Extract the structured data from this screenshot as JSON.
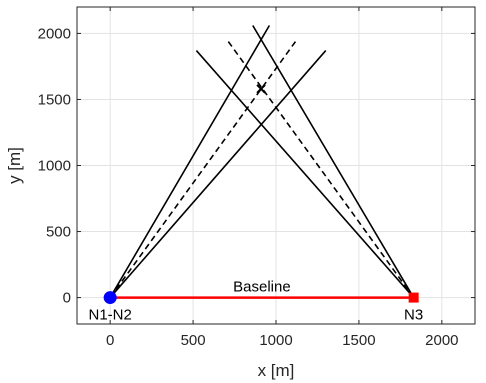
{
  "chart_data": {
    "type": "line",
    "title": "",
    "xlabel": "x [m]",
    "ylabel": "y [m]",
    "xlim": [
      -200,
      2200
    ],
    "ylim": [
      -200,
      2200
    ],
    "xticks": [
      0,
      500,
      1000,
      1500,
      2000
    ],
    "yticks": [
      0,
      500,
      1000,
      1500,
      2000
    ],
    "grid": true,
    "series": [
      {
        "style": "solid",
        "color": "#000000",
        "x": [
          0,
          1300
        ],
        "y": [
          0,
          1870
        ]
      },
      {
        "style": "solid",
        "color": "#000000",
        "x": [
          0,
          960
        ],
        "y": [
          0,
          2060
        ]
      },
      {
        "style": "dashed",
        "color": "#000000",
        "x": [
          0,
          1130
        ],
        "y": [
          0,
          1960
        ]
      },
      {
        "style": "solid",
        "color": "#000000",
        "x": [
          1830,
          520
        ],
        "y": [
          0,
          1870
        ]
      },
      {
        "style": "solid",
        "color": "#000000",
        "x": [
          1830,
          860
        ],
        "y": [
          0,
          2060
        ]
      },
      {
        "style": "dashed",
        "color": "#000000",
        "x": [
          1830,
          700
        ],
        "y": [
          0,
          1960
        ]
      },
      {
        "style": "solid",
        "color": "#ff0000",
        "x": [
          0,
          1830
        ],
        "y": [
          0,
          0
        ]
      }
    ],
    "markers": [
      {
        "shape": "circle",
        "color": "#0000ff",
        "x": 0,
        "y": 0,
        "label": "N1-N2",
        "label_pos": "below"
      },
      {
        "shape": "square",
        "color": "#ff0000",
        "x": 1830,
        "y": 0,
        "label": "N3",
        "label_pos": "below"
      },
      {
        "shape": "cross",
        "color": "#000000",
        "x": 910,
        "y": 1580
      }
    ],
    "annotations": [
      {
        "text": "Baseline",
        "x": 915,
        "y": 0,
        "pos": "above"
      }
    ]
  }
}
